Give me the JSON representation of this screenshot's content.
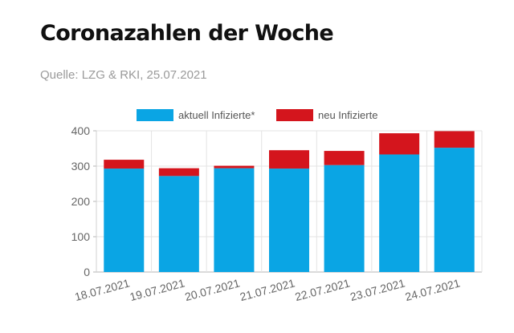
{
  "header": {
    "title": "Coronazahlen der Woche",
    "source": "Quelle: LZG & RKI, 25.07.2021"
  },
  "colors": {
    "current": "#0aa5e4",
    "new": "#d4151d",
    "grid": "#e3e3e3",
    "axis_text": "#666666"
  },
  "chart_data": {
    "type": "bar",
    "stacked": true,
    "categories": [
      "18.07.2021",
      "19.07.2021",
      "20.07.2021",
      "21.07.2021",
      "22.07.2021",
      "23.07.2021",
      "24.07.2021"
    ],
    "series": [
      {
        "name": "aktuell Infizierte*",
        "values": [
          293,
          272,
          294,
          293,
          303,
          333,
          352
        ]
      },
      {
        "name": "neu Infizierte",
        "values": [
          25,
          22,
          7,
          52,
          40,
          60,
          47
        ]
      }
    ],
    "ylim": [
      0,
      400
    ],
    "yticks": [
      0,
      100,
      200,
      300,
      400
    ],
    "grid": true,
    "legend": "top-center",
    "xlabel": "",
    "ylabel": ""
  }
}
